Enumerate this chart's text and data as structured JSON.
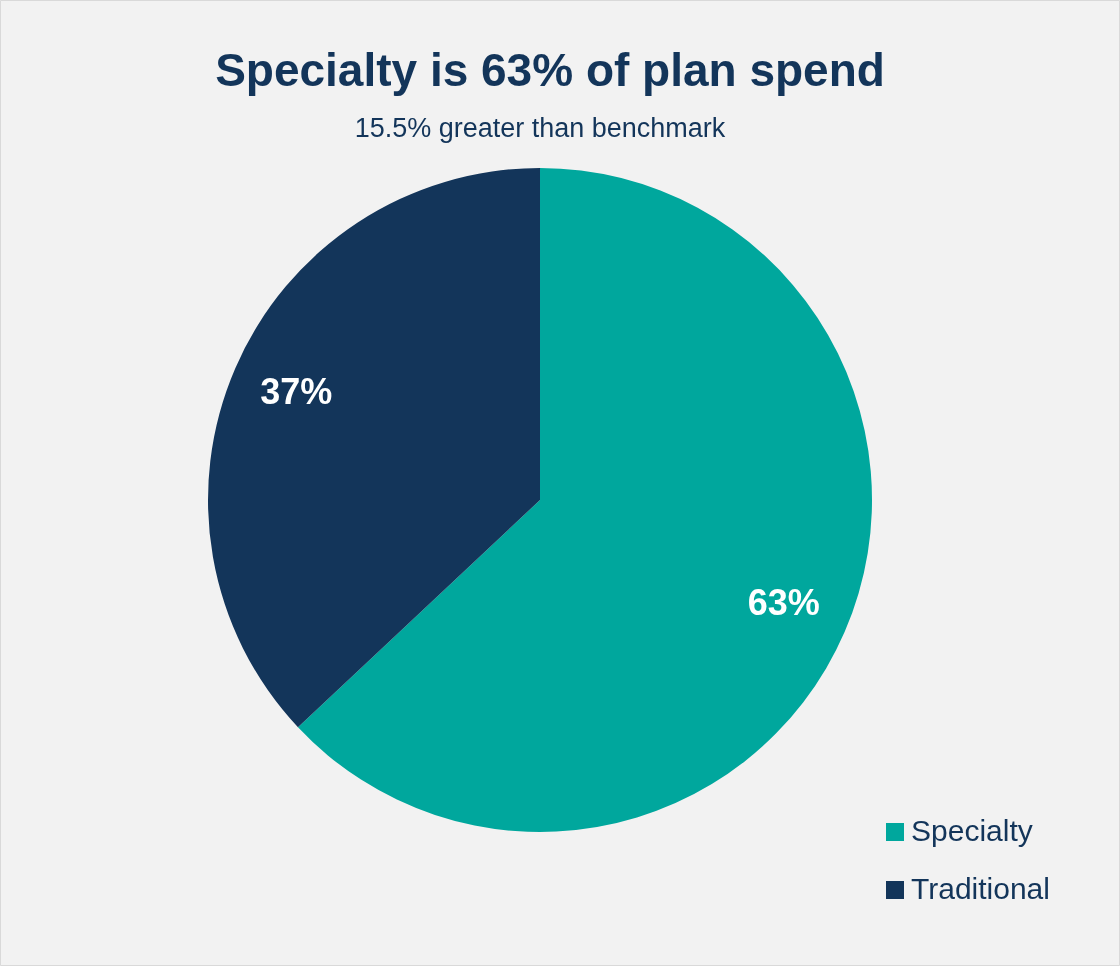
{
  "chart_data": {
    "type": "pie",
    "title": "Specialty is 63% of plan spend",
    "subtitle": "15.5% greater than benchmark",
    "categories": [
      "Specialty",
      "Traditional"
    ],
    "values": [
      63,
      37
    ],
    "colors": [
      "#00a79d",
      "#13355a"
    ],
    "value_labels": [
      "63%",
      "37%"
    ],
    "legend": "bottom right"
  }
}
